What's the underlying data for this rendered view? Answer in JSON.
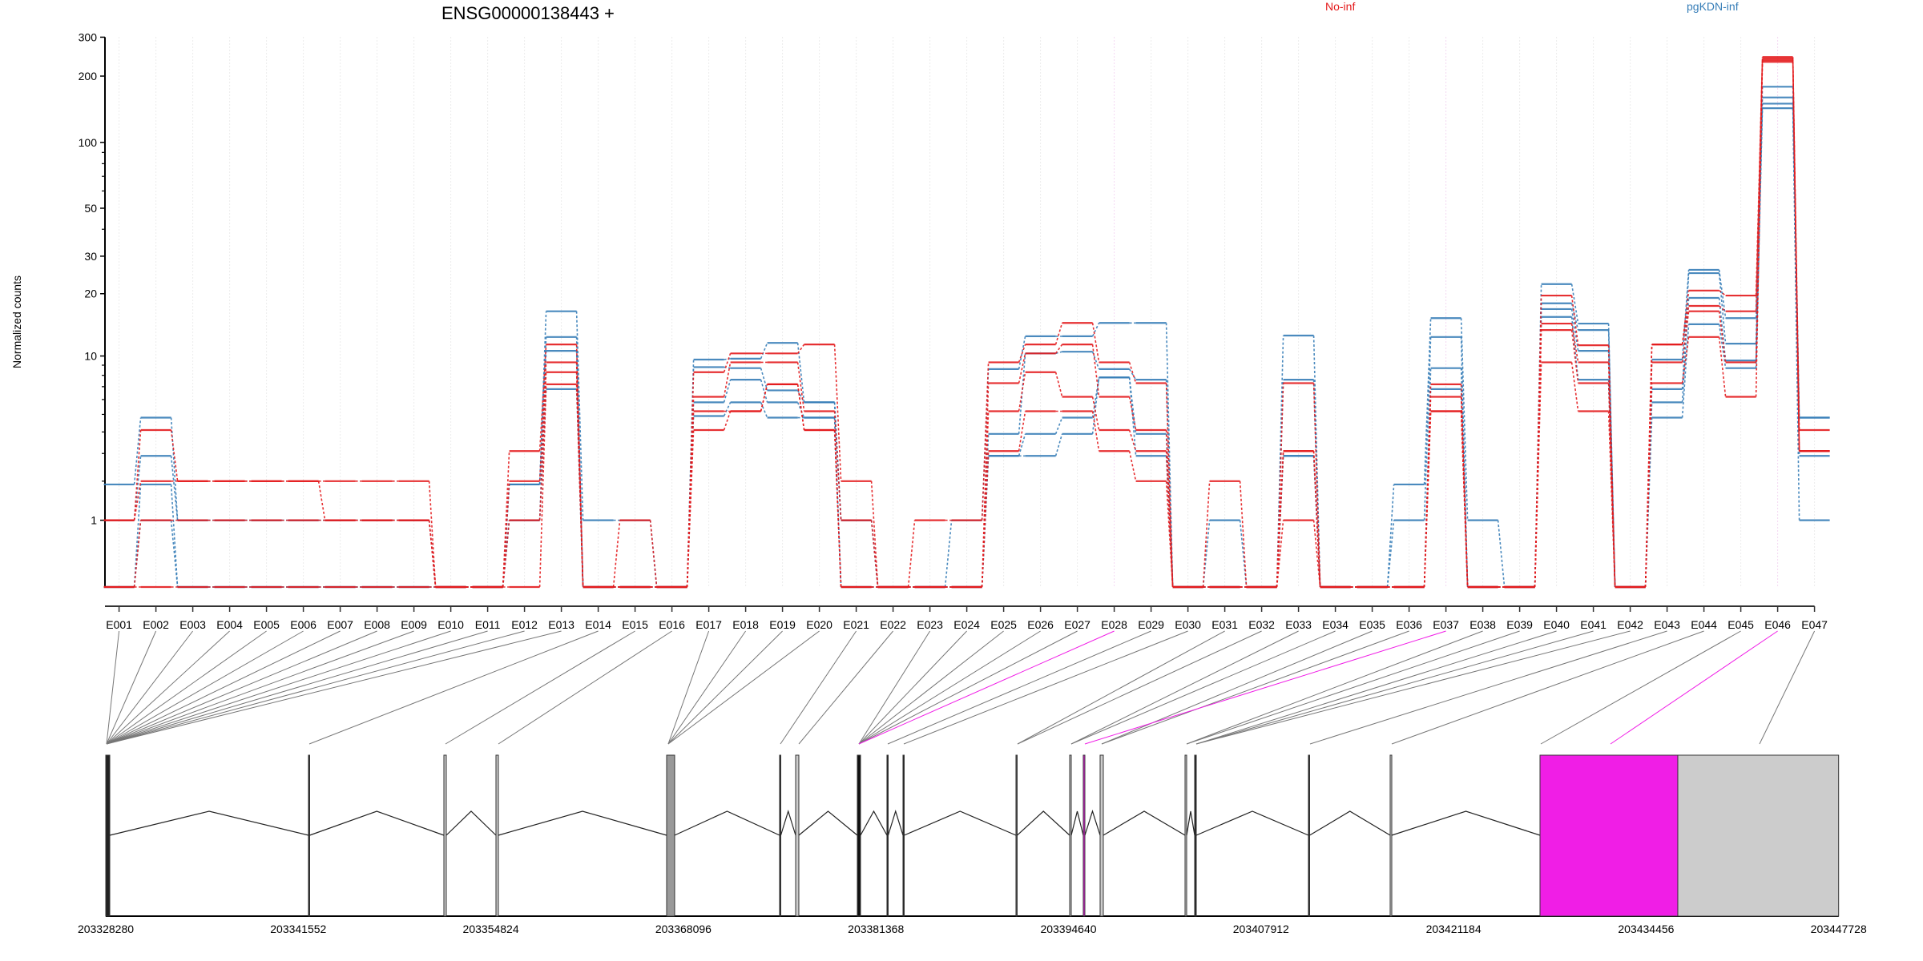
{
  "chart_data": {
    "type": "line",
    "title": "ENSG00000138443 +",
    "ylabel": "Normalized counts",
    "xlabel": "",
    "yscale": "log10(count+1)",
    "ylim": [
      0,
      300
    ],
    "yticks": [
      1,
      10,
      20,
      30,
      50,
      100,
      200,
      300
    ],
    "ytick_labels": [
      "1",
      "10",
      "20",
      "30",
      "50",
      "100",
      "200",
      "300"
    ],
    "grid": "vertical dotted at each exon",
    "legend_placement": "top",
    "categories": [
      "E001",
      "E002",
      "E003",
      "E004",
      "E005",
      "E006",
      "E007",
      "E008",
      "E009",
      "E010",
      "E011",
      "E012",
      "E013",
      "E014",
      "E015",
      "E016",
      "E017",
      "E018",
      "E019",
      "E020",
      "E021",
      "E022",
      "E023",
      "E024",
      "E025",
      "E026",
      "E027",
      "E028",
      "E029",
      "E030",
      "E031",
      "E032",
      "E033",
      "E034",
      "E035",
      "E036",
      "E037",
      "E038",
      "E039",
      "E040",
      "E041",
      "E042",
      "E043",
      "E044",
      "E045",
      "E046",
      "E047"
    ],
    "highlighted_exons": [
      "E028",
      "E037",
      "E046"
    ],
    "series": [
      {
        "name": "No-inf",
        "color": "#e41a1c",
        "samples": [
          [
            1,
            4.1,
            2,
            2,
            2,
            2,
            2,
            2,
            2,
            0,
            0,
            3.1,
            11.4,
            0,
            1,
            0,
            8.3,
            10.3,
            10.3,
            11.4,
            2,
            0,
            1,
            1,
            9.3,
            11.4,
            14.5,
            9.3,
            7.3,
            0,
            2,
            0,
            7.3,
            0,
            0,
            0,
            7.2,
            0,
            0,
            19.6,
            11.3,
            0,
            11.4,
            20.7,
            19.6,
            244,
            4.1
          ],
          [
            1,
            2,
            2,
            2,
            2,
            2,
            1,
            1,
            1,
            0,
            0,
            2,
            9.3,
            0,
            0,
            0,
            6.2,
            9.3,
            9.3,
            5.2,
            1,
            0,
            0,
            0,
            7.3,
            10.3,
            11.4,
            6.2,
            4.1,
            0,
            0,
            0,
            3.1,
            0,
            0,
            0,
            6.2,
            0,
            0,
            14.4,
            9.3,
            0,
            11.4,
            17.5,
            16.5,
            240,
            3.1
          ],
          [
            0,
            1,
            1,
            1,
            1,
            1,
            1,
            1,
            1,
            0,
            0,
            1,
            8.3,
            0,
            0,
            0,
            5.2,
            5.2,
            7.2,
            4.1,
            0,
            0,
            0,
            0,
            5.2,
            8.3,
            6.2,
            4.1,
            3.1,
            0,
            0,
            0,
            3.1,
            0,
            0,
            0,
            5.2,
            0,
            0,
            13.4,
            7.3,
            0,
            9.3,
            16.5,
            9.3,
            236,
            3.1
          ],
          [
            0,
            0,
            0,
            0,
            0,
            0,
            0,
            0,
            0,
            0,
            0,
            0,
            7.2,
            0,
            0,
            0,
            4.1,
            5.2,
            7.2,
            4.1,
            0,
            0,
            0,
            0,
            3.1,
            5.2,
            5.2,
            3.1,
            2,
            0,
            0,
            0,
            1,
            0,
            0,
            0,
            5.2,
            0,
            0,
            9.3,
            5.2,
            0,
            7.3,
            12.4,
            6.2,
            232,
            3.1
          ]
        ]
      },
      {
        "name": "pgKDN-inf",
        "color": "#377eb8",
        "samples": [
          [
            1.9,
            4.8,
            1,
            1,
            1,
            1,
            1,
            1,
            1,
            0,
            0,
            1.9,
            16.5,
            1,
            1,
            0,
            9.6,
            9.7,
            11.6,
            5.8,
            1,
            0,
            0,
            1,
            8.6,
            12.5,
            12.5,
            14.5,
            14.5,
            0,
            1,
            0,
            12.6,
            0,
            0,
            1.9,
            15.3,
            1,
            0,
            22.2,
            14.4,
            0,
            9.6,
            25.9,
            15.3,
            179,
            4.8
          ],
          [
            1,
            2.9,
            1,
            1,
            1,
            1,
            1,
            1,
            1,
            0,
            0,
            1.9,
            12.4,
            0,
            0,
            0,
            8.8,
            8.7,
            6.7,
            5.8,
            1,
            0,
            0,
            0,
            3.9,
            10.3,
            10.5,
            8.6,
            7.6,
            0,
            0,
            0,
            7.6,
            0,
            0,
            1,
            12.4,
            0,
            0,
            18,
            13.4,
            0,
            6.8,
            25,
            11.5,
            160,
            4.8
          ],
          [
            0,
            1.9,
            0,
            0,
            0,
            0,
            0,
            0,
            0,
            0,
            0,
            1,
            10.6,
            0,
            0,
            0,
            5.8,
            7.6,
            5.8,
            4.8,
            0,
            0,
            0,
            0,
            2.9,
            3.9,
            4.8,
            7.8,
            3.9,
            0,
            0,
            0,
            2.9,
            0,
            0,
            0,
            8.7,
            0,
            0,
            16.9,
            10.6,
            0,
            5.8,
            19.1,
            9.5,
            150,
            2.9
          ],
          [
            0,
            1,
            0,
            0,
            0,
            0,
            0,
            0,
            0,
            0,
            0,
            1,
            6.8,
            0,
            0,
            0,
            4.9,
            5.8,
            4.8,
            4.8,
            0,
            0,
            0,
            0,
            2.9,
            2.9,
            3.9,
            7.8,
            2.9,
            0,
            0,
            0,
            2.9,
            0,
            0,
            0,
            6.8,
            0,
            0,
            15.5,
            7.6,
            0,
            4.8,
            14.3,
            8.7,
            143,
            1
          ]
        ]
      }
    ],
    "gene_model": {
      "genomic_ticks": [
        203328280,
        203341552,
        203354824,
        203368096,
        203381368,
        203394640,
        203407912,
        203421184,
        203434456,
        203447728
      ],
      "genomic_tick_labels": [
        "203328280",
        "203341552",
        "203354824",
        "203368096",
        "203381368",
        "203394640",
        "203407912",
        "203421184",
        "203434456",
        "203447728"
      ],
      "highlight_color": "#f01ee6",
      "exon_boxes": [
        {
          "start": 203328280,
          "end": 203328556,
          "fill": "#222222"
        },
        {
          "start": 203342253,
          "end": 203342308,
          "fill": "#222222"
        },
        {
          "start": 203351587,
          "end": 203351753,
          "fill": "#cccccc"
        },
        {
          "start": 203355177,
          "end": 203355343,
          "fill": "#cccccc"
        },
        {
          "start": 203366941,
          "end": 203367493,
          "fill": "#999999"
        },
        {
          "start": 203374728,
          "end": 203374783,
          "fill": "#222222"
        },
        {
          "start": 203375833,
          "end": 203376054,
          "fill": "#cccccc"
        },
        {
          "start": 203380086,
          "end": 203380307,
          "fill": "#111111"
        },
        {
          "start": 203382129,
          "end": 203382184,
          "fill": "#222222"
        },
        {
          "start": 203383234,
          "end": 203383289,
          "fill": "#222222"
        },
        {
          "start": 203391021,
          "end": 203391077,
          "fill": "#555555"
        },
        {
          "start": 203394722,
          "end": 203394832,
          "fill": "#cccccc"
        },
        {
          "start": 203395661,
          "end": 203395771,
          "fill": "#f01ee6"
        },
        {
          "start": 203396821,
          "end": 203397042,
          "fill": "#cccccc"
        },
        {
          "start": 203402676,
          "end": 203402786,
          "fill": "#cccccc"
        },
        {
          "start": 203403339,
          "end": 203403449,
          "fill": "#222222"
        },
        {
          "start": 203411181,
          "end": 203411236,
          "fill": "#222222"
        },
        {
          "start": 203416815,
          "end": 203416925,
          "fill": "#cccccc"
        },
        {
          "start": 203427143,
          "end": 203436642,
          "fill": "#f01ee6"
        },
        {
          "start": 203436642,
          "end": 203447728,
          "fill": "#cccccc"
        }
      ],
      "exon_positions": [
        203328280,
        203328280,
        203328280,
        203328280,
        203328280,
        203328280,
        203328280,
        203328280,
        203328280,
        203328280,
        203328280,
        203328280,
        203328280,
        203342253,
        203351642,
        203355288,
        203366996,
        203366996,
        203366996,
        203366996,
        203374728,
        203376000,
        203380141,
        203380141,
        203380141,
        203380141,
        203380141,
        203380141,
        203382129,
        203383234,
        203391077,
        203391077,
        203394777,
        203394777,
        203396877,
        203396877,
        203395716,
        203402731,
        203402731,
        203403394,
        203403394,
        203403394,
        203411236,
        203416870,
        203427143,
        203431948,
        203442221
      ]
    }
  }
}
